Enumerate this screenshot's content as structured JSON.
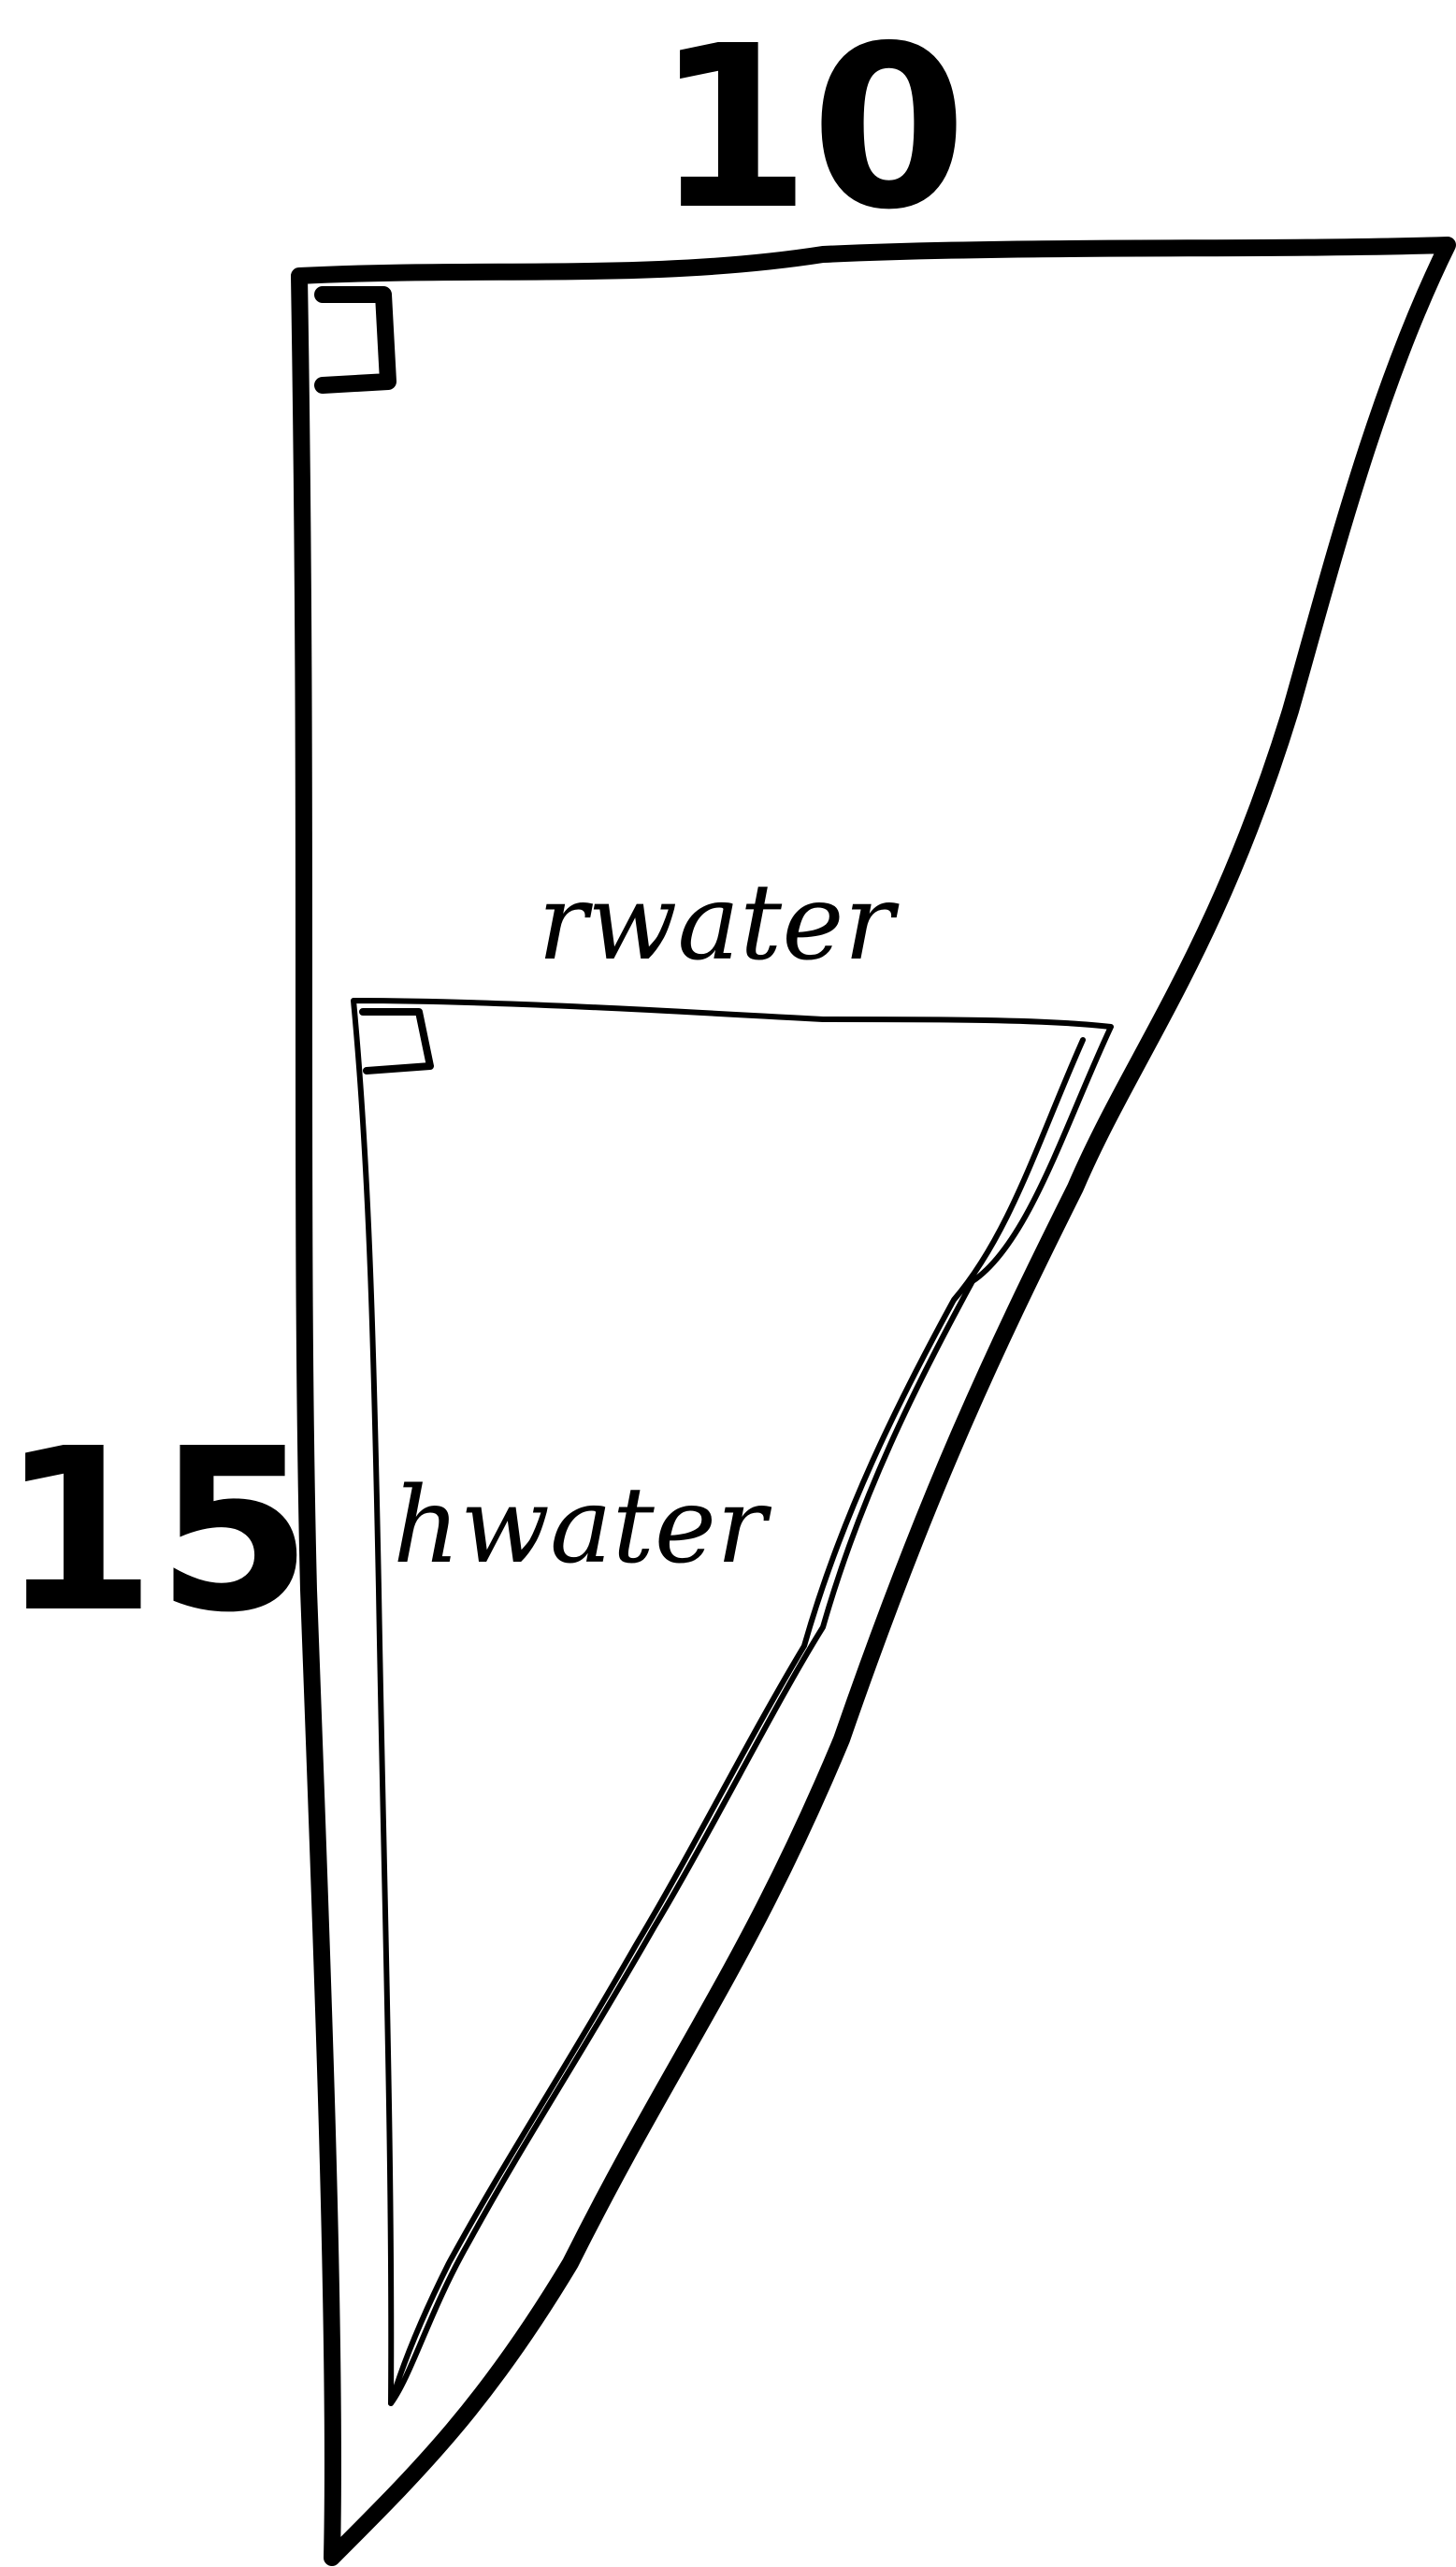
{
  "diagram": {
    "top_label": "10",
    "side_label": "15",
    "inner_top_label": "rwater",
    "inner_side_label": "hwater",
    "stroke_color": "#000000",
    "background_color": "#ffffff"
  }
}
